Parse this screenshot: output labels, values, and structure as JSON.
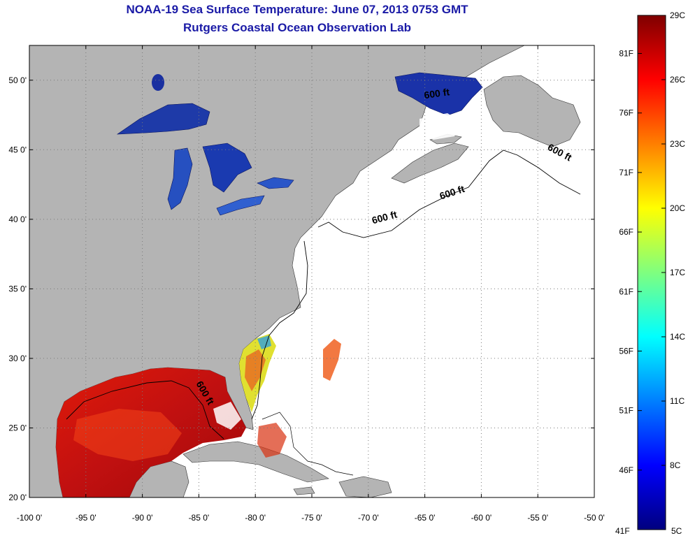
{
  "header": {
    "title": "NOAA-19 Sea Surface Temperature:  June 07, 2013 0753 GMT",
    "subtitle": "Rutgers Coastal Ocean Observation Lab"
  },
  "map": {
    "lon_range": [
      -100,
      -50
    ],
    "lat_range": [
      20,
      52.5
    ],
    "lon_ticks": [
      {
        "value": -100,
        "label": "-100 0'"
      },
      {
        "value": -95,
        "label": "-95 0'"
      },
      {
        "value": -90,
        "label": "-90 0'"
      },
      {
        "value": -85,
        "label": "-85 0'"
      },
      {
        "value": -80,
        "label": "-80 0'"
      },
      {
        "value": -75,
        "label": "-75 0'"
      },
      {
        "value": -70,
        "label": "-70 0'"
      },
      {
        "value": -65,
        "label": "-65 0'"
      },
      {
        "value": -60,
        "label": "-60 0'"
      },
      {
        "value": -55,
        "label": "-55 0'"
      },
      {
        "value": -50,
        "label": "-50 0'"
      }
    ],
    "lat_ticks": [
      {
        "value": 20,
        "label": "20 0'"
      },
      {
        "value": 25,
        "label": "25 0'"
      },
      {
        "value": 30,
        "label": "30 0'"
      },
      {
        "value": 35,
        "label": "35 0'"
      },
      {
        "value": 40,
        "label": "40 0'"
      },
      {
        "value": 45,
        "label": "45 0'"
      },
      {
        "value": 50,
        "label": "50 0'"
      }
    ],
    "grid": "dotted",
    "land_color": "#b4b4b4",
    "ocean_color": "#ffffff",
    "contour_labels": [
      {
        "text": "600 ft",
        "lon": -68.5,
        "lat": 39.9,
        "rotate": -15
      },
      {
        "text": "600 ft",
        "lon": -62.5,
        "lat": 41.7,
        "rotate": -18
      },
      {
        "text": "600 ft",
        "lon": -53.2,
        "lat": 44.6,
        "rotate": 28
      },
      {
        "text": "600 ft",
        "lon": -63.9,
        "lat": 48.8,
        "rotate": -8
      },
      {
        "text": "600 ft",
        "lon": -84.7,
        "lat": 27.4,
        "rotate": 60
      }
    ]
  },
  "colorbar": {
    "top_label": "29C",
    "bottom_label": "5C",
    "bottom_f_label": "41F",
    "min_c": 5,
    "max_c": 29,
    "celsius_ticks": [
      {
        "value": 26,
        "label": "26C"
      },
      {
        "value": 23,
        "label": "23C"
      },
      {
        "value": 20,
        "label": "20C"
      },
      {
        "value": 17,
        "label": "17C"
      },
      {
        "value": 14,
        "label": "14C"
      },
      {
        "value": 11,
        "label": "11C"
      },
      {
        "value": 8,
        "label": "8C"
      }
    ],
    "fahrenheit_ticks": [
      {
        "value": 81,
        "label": "81F"
      },
      {
        "value": 76,
        "label": "76F"
      },
      {
        "value": 71,
        "label": "71F"
      },
      {
        "value": 66,
        "label": "66F"
      },
      {
        "value": 61,
        "label": "61F"
      },
      {
        "value": 56,
        "label": "56F"
      },
      {
        "value": 51,
        "label": "51F"
      },
      {
        "value": 46,
        "label": "46F"
      }
    ],
    "colors": [
      "#7f0000",
      "#ff0000",
      "#ff7f00",
      "#ffff00",
      "#7fff7f",
      "#00ffff",
      "#007fff",
      "#0000ff",
      "#00007f"
    ]
  }
}
